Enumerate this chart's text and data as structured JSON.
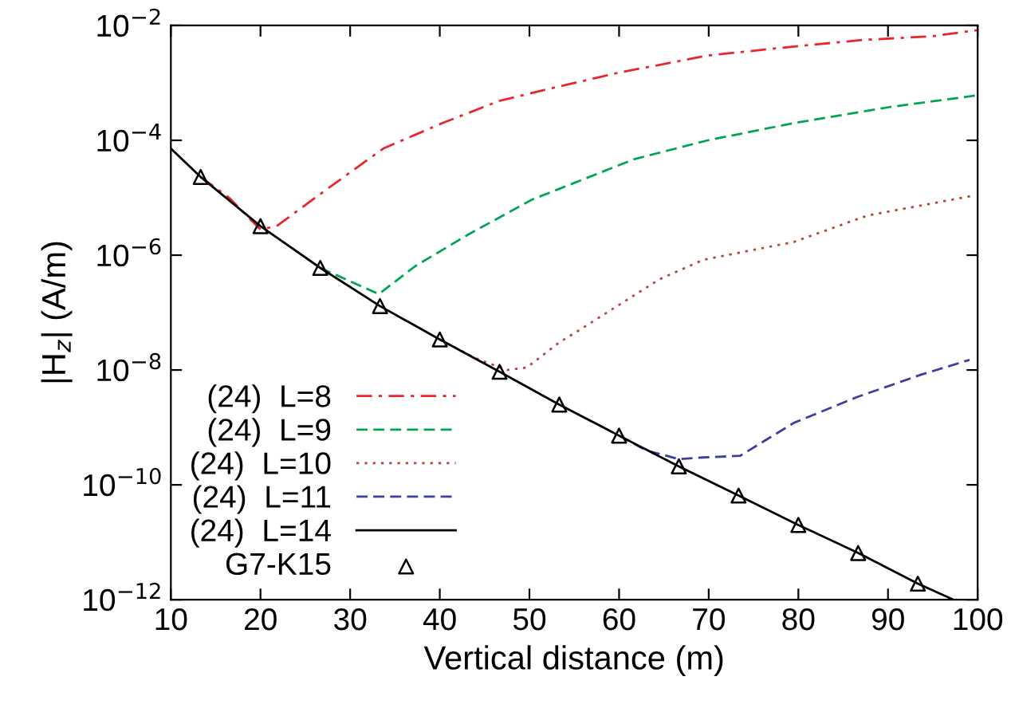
{
  "chart_data": {
    "type": "line",
    "xlabel": "Vertical distance (m)",
    "ylabel": "|H$_{z}$| (A/m)",
    "log": "y",
    "xlim": [
      10,
      100
    ],
    "xticks": [
      10,
      20,
      30,
      40,
      50,
      60,
      70,
      80,
      90,
      100
    ],
    "ylim": [
      1e-12,
      0.01
    ],
    "yticks": [
      {
        "value": 1e-12,
        "label": "10$^{−12}$"
      },
      {
        "value": 1e-10,
        "label": "10$^{−10}$"
      },
      {
        "value": 1e-08,
        "label": "10$^{−8}$"
      },
      {
        "value": 1e-06,
        "label": "10$^{−6}$"
      },
      {
        "value": 0.0001,
        "label": "10$^{−4}$"
      },
      {
        "value": 0.01,
        "label": "10$^{−2}$"
      }
    ],
    "grid": false,
    "legend": "bottom left",
    "series": [
      {
        "name": "(24)  L=8",
        "type": "line",
        "color": "#e8262b",
        "line_style": "dashdot",
        "x": [
          13.33,
          16.5,
          20,
          21.8,
          27.1,
          33.7,
          40.3,
          46.7,
          52.8,
          59.9,
          69.9,
          80.1,
          87.2,
          94.9,
          100
        ],
        "values": [
          2.3e-05,
          1e-05,
          2.8e-06,
          3.2e-06,
          1.3e-05,
          7.2e-05,
          0.0002,
          0.00049,
          0.00083,
          0.0015,
          0.003,
          0.0044,
          0.0056,
          0.0065,
          0.0083
        ]
      },
      {
        "name": "(24)  L=9",
        "type": "line",
        "color": "#00a651",
        "line_style": "dashed",
        "x": [
          26.67,
          33.2,
          37.3,
          43.2,
          50.3,
          61.7,
          69.9,
          79.5,
          90.2,
          99.7
        ],
        "values": [
          6e-07,
          2.1e-07,
          6.5e-07,
          2.3e-06,
          9.3e-06,
          4.7e-05,
          0.0001,
          0.0002,
          0.00038,
          0.0006
        ]
      },
      {
        "name": "(24)  L=10",
        "type": "line",
        "color": "#b5473e",
        "line_style": "dotted",
        "x": [
          40,
          44,
          47.5,
          49.7,
          53.3,
          55.6,
          64.5,
          69.4,
          79.5,
          87.7,
          99.7
        ],
        "values": [
          3.4e-08,
          1.6e-08,
          1e-08,
          1.1e-08,
          3e-08,
          5e-08,
          3.8e-07,
          8.3e-07,
          1.7e-06,
          4.9e-06,
          1.1e-05
        ]
      },
      {
        "name": "(24)  L=11",
        "type": "line",
        "color": "#3b3fa0",
        "line_style": "dashed",
        "x": [
          60,
          63,
          66.7,
          69.4,
          73.5,
          79.5,
          86.6,
          93.7,
          99.1
        ],
        "values": [
          7.2e-10,
          4e-10,
          2.8e-10,
          3e-10,
          3.2e-10,
          1.2e-09,
          3.4e-09,
          8.3e-09,
          1.5e-08
        ]
      },
      {
        "name": "(24)  L=14",
        "type": "line",
        "color": "#000000",
        "line_style": "solid",
        "x": [
          10,
          13.33,
          20,
          26.67,
          33.33,
          40,
          46.67,
          53.33,
          60,
          66.67,
          73.33,
          80,
          86.67,
          93.33,
          97.3
        ],
        "values": [
          7.2e-05,
          2.3e-05,
          3.2e-06,
          6e-07,
          1.3e-07,
          3.4e-08,
          9.3e-09,
          2.5e-09,
          7.2e-10,
          2.1e-10,
          6.5e-11,
          2e-11,
          6.5e-12,
          1.9e-12,
          1e-12
        ]
      },
      {
        "name": "G7-K15",
        "type": "scatter",
        "color": "#000000",
        "marker": "triangle",
        "x": [
          13.33,
          20,
          26.67,
          33.33,
          40,
          46.67,
          53.33,
          60,
          66.67,
          73.33,
          80,
          86.67,
          93.33
        ],
        "values": [
          2.3e-05,
          3.2e-06,
          6e-07,
          1.3e-07,
          3.4e-08,
          9.3e-09,
          2.5e-09,
          7.2e-10,
          2.1e-10,
          6.5e-11,
          2e-11,
          6.5e-12,
          1.9e-12
        ]
      }
    ]
  }
}
